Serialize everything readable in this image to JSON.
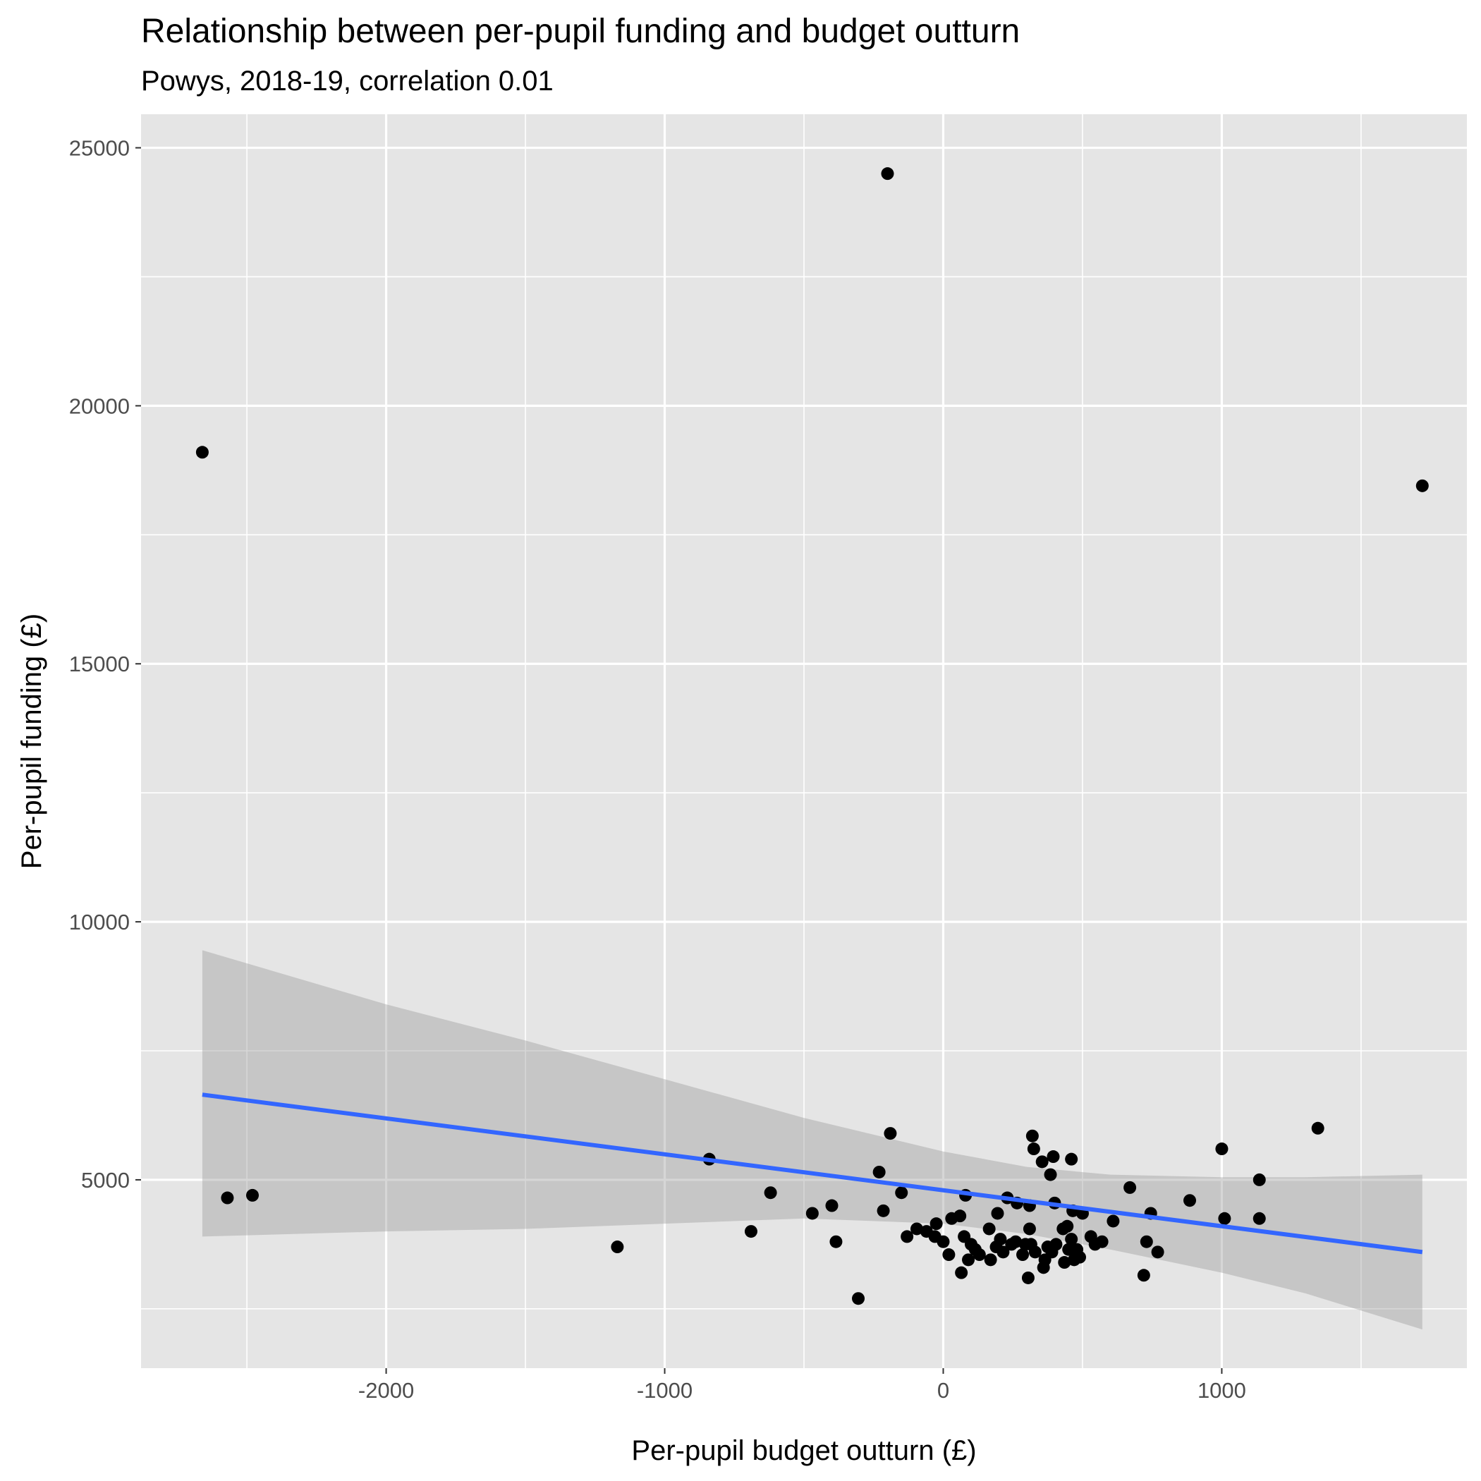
{
  "chart_data": {
    "type": "scatter",
    "title": "Relationship between per-pupil funding and budget outturn",
    "subtitle": "Powys, 2018-19, correlation 0.01",
    "xlabel": "Per-pupil budget outturn (£)",
    "ylabel": "Per-pupil funding (£)",
    "xlim": [
      -2880,
      1880
    ],
    "ylim": [
      1350,
      25650
    ],
    "x_ticks": [
      -2000,
      -1000,
      0,
      1000
    ],
    "x_tick_labels": [
      "-2000",
      "-1000",
      "0",
      "1000"
    ],
    "x_minor_ticks": [
      -2500,
      -1500,
      -500,
      500,
      1500
    ],
    "y_ticks": [
      5000,
      10000,
      15000,
      20000,
      25000
    ],
    "y_tick_labels": [
      "5000",
      "10000",
      "15000",
      "20000",
      "25000"
    ],
    "y_minor_ticks": [
      2500,
      7500,
      12500,
      17500,
      22500
    ],
    "grid": true,
    "background": "#e5e5e5",
    "grid_color": "#ffffff",
    "point_color": "#000000",
    "points": [
      [
        -2660,
        19100
      ],
      [
        -2570,
        4650
      ],
      [
        -2480,
        4700
      ],
      [
        -200,
        24500
      ],
      [
        1720,
        18450
      ],
      [
        -1170,
        3700
      ],
      [
        -840,
        5400
      ],
      [
        -690,
        4000
      ],
      [
        -620,
        4750
      ],
      [
        -470,
        4350
      ],
      [
        -400,
        4500
      ],
      [
        -385,
        3800
      ],
      [
        -305,
        2700
      ],
      [
        -230,
        5150
      ],
      [
        -215,
        4400
      ],
      [
        -190,
        5900
      ],
      [
        -150,
        4750
      ],
      [
        -130,
        3900
      ],
      [
        -95,
        4050
      ],
      [
        -60,
        4000
      ],
      [
        -30,
        3900
      ],
      [
        -25,
        4150
      ],
      [
        0,
        3800
      ],
      [
        20,
        3550
      ],
      [
        30,
        4250
      ],
      [
        60,
        4300
      ],
      [
        65,
        3200
      ],
      [
        75,
        3900
      ],
      [
        80,
        4700
      ],
      [
        90,
        3450
      ],
      [
        100,
        3750
      ],
      [
        115,
        3650
      ],
      [
        130,
        3550
      ],
      [
        165,
        4050
      ],
      [
        170,
        3450
      ],
      [
        190,
        3700
      ],
      [
        195,
        4350
      ],
      [
        205,
        3850
      ],
      [
        215,
        3600
      ],
      [
        230,
        4650
      ],
      [
        245,
        3750
      ],
      [
        260,
        3800
      ],
      [
        265,
        4550
      ],
      [
        285,
        3550
      ],
      [
        295,
        3750
      ],
      [
        305,
        3100
      ],
      [
        310,
        4500
      ],
      [
        310,
        4050
      ],
      [
        315,
        3750
      ],
      [
        320,
        5850
      ],
      [
        325,
        5600
      ],
      [
        330,
        3600
      ],
      [
        355,
        5350
      ],
      [
        360,
        3300
      ],
      [
        365,
        3450
      ],
      [
        375,
        3700
      ],
      [
        385,
        5100
      ],
      [
        390,
        3600
      ],
      [
        395,
        5450
      ],
      [
        400,
        4550
      ],
      [
        405,
        3750
      ],
      [
        430,
        4050
      ],
      [
        435,
        3400
      ],
      [
        445,
        4100
      ],
      [
        450,
        3650
      ],
      [
        460,
        5400
      ],
      [
        460,
        3850
      ],
      [
        465,
        4400
      ],
      [
        470,
        3450
      ],
      [
        480,
        3650
      ],
      [
        490,
        3500
      ],
      [
        500,
        4350
      ],
      [
        530,
        3900
      ],
      [
        545,
        3750
      ],
      [
        570,
        3800
      ],
      [
        610,
        4200
      ],
      [
        670,
        4850
      ],
      [
        720,
        3150
      ],
      [
        730,
        3800
      ],
      [
        745,
        4350
      ],
      [
        770,
        3600
      ],
      [
        885,
        4600
      ],
      [
        1000,
        5600
      ],
      [
        1010,
        4250
      ],
      [
        1135,
        5000
      ],
      [
        1135,
        4250
      ],
      [
        1345,
        6000
      ]
    ],
    "trend_line": {
      "type": "linear",
      "color": "#3366ff",
      "x": [
        -2660,
        1720
      ],
      "y": [
        6650,
        3600
      ]
    },
    "confidence_band": {
      "color": "#999999",
      "x": [
        -2660,
        -2000,
        -1500,
        -1000,
        -500,
        0,
        300,
        600,
        1000,
        1300,
        1720
      ],
      "upper": [
        9450,
        8400,
        7700,
        6950,
        6200,
        5550,
        5250,
        5100,
        5050,
        5050,
        5100
      ],
      "lower": [
        3900,
        4000,
        4050,
        4150,
        4250,
        4150,
        3950,
        3650,
        3200,
        2800,
        2100
      ]
    }
  }
}
